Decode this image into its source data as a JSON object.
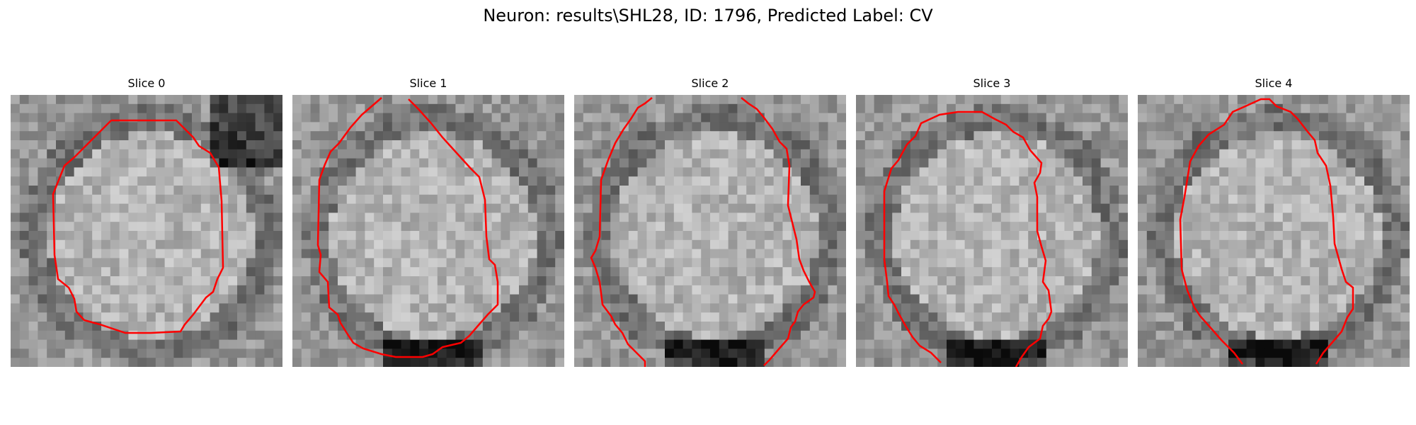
{
  "figure": {
    "title": "Neuron: results\\SHL28, ID: 1796, Predicted Label: CV"
  },
  "panels": [
    {
      "title": "Slice 0",
      "seed": 11,
      "dark": "top-right"
    },
    {
      "title": "Slice 1",
      "seed": 23,
      "dark": "bottom"
    },
    {
      "title": "Slice 2",
      "seed": 37,
      "dark": "bottom"
    },
    {
      "title": "Slice 3",
      "seed": 41,
      "dark": "bottom"
    },
    {
      "title": "Slice 4",
      "seed": 53,
      "dark": "bottom"
    }
  ],
  "colors": {
    "contour": "#ff0000"
  }
}
